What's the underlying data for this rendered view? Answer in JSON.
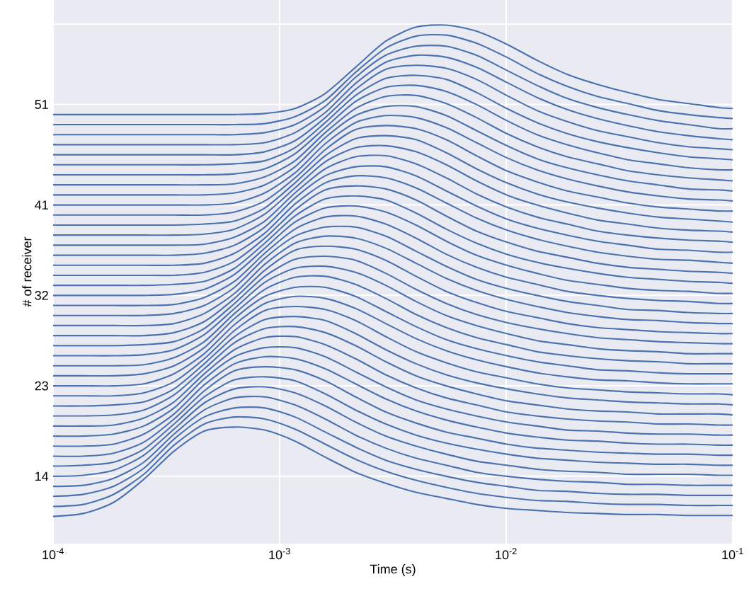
{
  "chart_data": {
    "type": "line",
    "xlabel": "Time (s)",
    "ylabel": "# of receiver",
    "log": "x",
    "grid": true,
    "marker": "none",
    "line_style": "solid",
    "xlim": [
      0.0001,
      0.1
    ],
    "ylim": [
      7.3,
      61.4
    ],
    "xticks": [
      {
        "value": 0.0001,
        "label": "10$^{-4}$"
      },
      {
        "value": 0.001,
        "label": "10$^{-3}$"
      },
      {
        "value": 0.01,
        "label": "10$^{-2}$"
      },
      {
        "value": 0.1,
        "label": "10$^{-1}$"
      }
    ],
    "yticks": [
      14,
      23,
      32,
      41,
      51,
      {
        "value": 59,
        "label": null
      }
    ],
    "x": [
      0.0001,
      0.000136,
      0.0001849,
      0.0002515,
      0.000342,
      0.0004651,
      0.0006324,
      0.0008601,
      0.0011695,
      0.00159,
      0.002163,
      0.002941,
      0.004,
      0.005439,
      0.007396,
      0.010058,
      0.01368,
      0.0186,
      0.02529,
      0.0344,
      0.04677,
      0.0636,
      0.0865,
      0.1
    ],
    "series": [
      {
        "color": "#4c72b0",
        "values": [
          10,
          10.3,
          11.4,
          13.7,
          16.5,
          18.5,
          18.9,
          18.6,
          17.5,
          15.9,
          14.4,
          13.3,
          12.4,
          11.8,
          11.2,
          10.8,
          10.6,
          10.4,
          10.3,
          10.2,
          10.2,
          10.1,
          10.1,
          10.1
        ]
      },
      {
        "color": "#4c72b0",
        "values": [
          11,
          11.2,
          12.2,
          14.2,
          17.1,
          19.2,
          19.9,
          19.7,
          18.7,
          17.2,
          15.7,
          14.5,
          13.6,
          12.9,
          12.3,
          11.9,
          11.6,
          11.5,
          11.3,
          11.2,
          11.2,
          11.1,
          11.1,
          11.1
        ]
      },
      {
        "color": "#4c72b0",
        "values": [
          12,
          12.2,
          13,
          14.8,
          17.7,
          19.9,
          20.8,
          20.8,
          19.9,
          18.4,
          16.9,
          15.6,
          14.7,
          14,
          13.4,
          13,
          12.6,
          12.5,
          12.3,
          12.2,
          12.2,
          12.1,
          12.1,
          12.1
        ]
      },
      {
        "color": "#4c72b0",
        "values": [
          13,
          13.1,
          13.8,
          15.4,
          18.2,
          20.6,
          21.8,
          21.9,
          21.1,
          19.7,
          18.1,
          16.8,
          15.8,
          15.1,
          14.4,
          14,
          13.7,
          13.5,
          13.4,
          13.2,
          13.2,
          13.1,
          13.1,
          13.1
        ]
      },
      {
        "color": "#4c72b0",
        "values": [
          14,
          14.1,
          14.6,
          16.1,
          18.7,
          21.3,
          22.7,
          22.9,
          22.3,
          21,
          19.4,
          18,
          17,
          16.2,
          15.5,
          15.1,
          14.7,
          14.5,
          14.4,
          14.2,
          14.2,
          14.2,
          14.1,
          14.1
        ]
      },
      {
        "color": "#4c72b0",
        "values": [
          15,
          15.1,
          15.4,
          16.7,
          19.2,
          21.9,
          23.6,
          23.9,
          23.5,
          22.2,
          20.6,
          19.2,
          18.1,
          17.3,
          16.7,
          16.2,
          15.8,
          15.6,
          15.4,
          15.3,
          15.2,
          15.2,
          15.1,
          15.1
        ]
      },
      {
        "color": "#4c72b0",
        "values": [
          16,
          16,
          16.3,
          17.4,
          19.7,
          22.5,
          24.5,
          24.9,
          24.6,
          23.5,
          21.9,
          20.4,
          19.3,
          18.4,
          17.8,
          17.2,
          16.8,
          16.6,
          16.4,
          16.3,
          16.2,
          16.2,
          16.1,
          16.1
        ]
      },
      {
        "color": "#4c72b0",
        "values": [
          17,
          17,
          17.2,
          18.2,
          20.2,
          23.1,
          25.2,
          25.9,
          25.7,
          24.7,
          23.2,
          21.7,
          20.5,
          19.6,
          18.9,
          18.3,
          17.9,
          17.6,
          17.5,
          17.3,
          17.2,
          17.2,
          17.1,
          17.1
        ]
      },
      {
        "color": "#4c72b0",
        "values": [
          18,
          18,
          18.2,
          19,
          20.8,
          23.7,
          25.9,
          26.8,
          26.8,
          25.9,
          24.4,
          22.9,
          21.6,
          20.7,
          20,
          19.4,
          19,
          18.6,
          18.5,
          18.3,
          18.2,
          18.2,
          18.1,
          18.1
        ]
      },
      {
        "color": "#4c72b0",
        "values": [
          19,
          19,
          19.1,
          19.8,
          21.4,
          24.2,
          26.6,
          27.8,
          27.9,
          27.1,
          25.7,
          24.1,
          22.8,
          21.8,
          21.1,
          20.4,
          20,
          19.7,
          19.5,
          19.4,
          19.2,
          19.2,
          19.1,
          19.1
        ]
      },
      {
        "color": "#4c72b0",
        "values": [
          20,
          20,
          20.1,
          20.6,
          22.1,
          24.7,
          27.3,
          28.7,
          28.9,
          28.3,
          27,
          25.4,
          24,
          23,
          22.2,
          21.5,
          21.1,
          20.7,
          20.5,
          20.4,
          20.2,
          20.2,
          20.2,
          20.1
        ]
      },
      {
        "color": "#4c72b0",
        "values": [
          21,
          21,
          21.1,
          21.4,
          22.7,
          25.2,
          27.9,
          29.6,
          29.9,
          29.5,
          28.2,
          26.6,
          25.2,
          24.1,
          23.3,
          22.7,
          22.2,
          21.8,
          21.6,
          21.4,
          21.3,
          21.2,
          21.2,
          21.1
        ]
      },
      {
        "color": "#4c72b0",
        "values": [
          22,
          22,
          22,
          22.3,
          23.4,
          25.7,
          28.5,
          30.5,
          30.9,
          30.6,
          29.5,
          27.9,
          26.4,
          25.3,
          24.4,
          23.8,
          23.2,
          22.8,
          22.6,
          22.4,
          22.3,
          22.2,
          22.2,
          22.1
        ]
      },
      {
        "color": "#4c72b0",
        "values": [
          23,
          23,
          23,
          23.2,
          24.2,
          26.2,
          29.1,
          31.2,
          31.9,
          31.7,
          30.7,
          29.2,
          27.7,
          26.5,
          25.6,
          24.9,
          24.3,
          23.9,
          23.6,
          23.5,
          23.3,
          23.2,
          23.2,
          23.2
        ]
      },
      {
        "color": "#4c72b0",
        "values": [
          24,
          24,
          24,
          24.2,
          25,
          26.8,
          29.7,
          31.9,
          32.8,
          32.8,
          31.9,
          30.4,
          28.9,
          27.6,
          26.7,
          26,
          25.4,
          25,
          24.6,
          24.5,
          24.3,
          24.2,
          24.2,
          24.2
        ]
      },
      {
        "color": "#4c72b0",
        "values": [
          25,
          25,
          25,
          25.1,
          25.8,
          27.4,
          30.2,
          32.6,
          33.8,
          33.9,
          33.1,
          31.7,
          30.1,
          28.8,
          27.8,
          27.1,
          26.4,
          26,
          25.7,
          25.5,
          25.4,
          25.2,
          25.2,
          25.2
        ]
      },
      {
        "color": "#4c72b0",
        "values": [
          26,
          26,
          26,
          26.1,
          26.6,
          28.1,
          30.7,
          33.3,
          34.7,
          34.9,
          34.3,
          33,
          31.4,
          30,
          29,
          28.2,
          27.5,
          27.1,
          26.7,
          26.5,
          26.4,
          26.2,
          26.2,
          26.2
        ]
      },
      {
        "color": "#4c72b0",
        "values": [
          27,
          27,
          27,
          27.1,
          27.4,
          28.7,
          31.2,
          33.9,
          35.6,
          35.9,
          35.5,
          34.2,
          32.6,
          31.2,
          30.1,
          29.3,
          28.7,
          28.2,
          27.8,
          27.6,
          27.4,
          27.3,
          27.2,
          27.2
        ]
      },
      {
        "color": "#4c72b0",
        "values": [
          28,
          28,
          28,
          28,
          28.3,
          29.4,
          31.7,
          34.5,
          36.5,
          36.9,
          36.6,
          35.5,
          33.9,
          32.4,
          31.3,
          30.4,
          29.8,
          29.2,
          28.8,
          28.6,
          28.4,
          28.3,
          28.2,
          28.2
        ]
      },
      {
        "color": "#4c72b0",
        "values": [
          29,
          29,
          29,
          29,
          29.2,
          30.2,
          32.2,
          35.1,
          37.2,
          37.9,
          37.7,
          36.7,
          35.2,
          33.7,
          32.5,
          31.6,
          30.9,
          30.3,
          29.9,
          29.6,
          29.5,
          29.3,
          29.2,
          29.2
        ]
      },
      {
        "color": "#4c72b0",
        "values": [
          30,
          30,
          30,
          30,
          30.2,
          31,
          32.8,
          35.7,
          37.9,
          38.8,
          38.8,
          37.9,
          36.4,
          34.9,
          33.6,
          32.7,
          32,
          31.4,
          31,
          30.6,
          30.5,
          30.3,
          30.2,
          30.2
        ]
      },
      {
        "color": "#4c72b0",
        "values": [
          31,
          31,
          31,
          31,
          31.1,
          31.8,
          33.4,
          36.2,
          38.6,
          39.8,
          39.9,
          39.1,
          37.7,
          36.1,
          34.8,
          33.8,
          33.1,
          32.4,
          32,
          31.7,
          31.5,
          31.4,
          31.2,
          31.2
        ]
      },
      {
        "color": "#4c72b0",
        "values": [
          32,
          32,
          32,
          32,
          32.1,
          32.6,
          34.1,
          36.7,
          39.3,
          40.7,
          40.9,
          40.3,
          39,
          37.4,
          36,
          35,
          34.2,
          33.5,
          33.1,
          32.7,
          32.5,
          32.4,
          32.2,
          32.2
        ]
      },
      {
        "color": "#4c72b0",
        "values": [
          33,
          33,
          33,
          33,
          33.1,
          33.4,
          34.7,
          37.2,
          39.9,
          41.6,
          41.9,
          41.5,
          40.2,
          38.6,
          37.2,
          36.1,
          35.3,
          34.7,
          34.2,
          33.8,
          33.6,
          33.4,
          33.3,
          33.2
        ]
      },
      {
        "color": "#4c72b0",
        "values": [
          34,
          34,
          34,
          34,
          34,
          34.3,
          35.4,
          37.7,
          40.5,
          42.5,
          42.9,
          42.6,
          41.5,
          39.9,
          38.4,
          37.3,
          36.4,
          35.8,
          35.2,
          34.8,
          34.6,
          34.4,
          34.3,
          34.2
        ]
      },
      {
        "color": "#4c72b0",
        "values": [
          35,
          35,
          35,
          35,
          35,
          35.2,
          36.2,
          38.2,
          41.1,
          43.2,
          43.9,
          43.7,
          42.7,
          41.2,
          39.7,
          38.5,
          37.6,
          36.9,
          36.3,
          35.9,
          35.6,
          35.5,
          35.3,
          35.2
        ]
      },
      {
        "color": "#4c72b0",
        "values": [
          36,
          36,
          36,
          36,
          36,
          36.2,
          37,
          38.8,
          41.7,
          43.9,
          44.8,
          44.8,
          43.9,
          42.4,
          40.9,
          39.6,
          38.7,
          38,
          37.4,
          37,
          36.6,
          36.5,
          36.3,
          36.3
        ]
      },
      {
        "color": "#4c72b0",
        "values": [
          37,
          37,
          37,
          37,
          37,
          37.1,
          37.8,
          39.4,
          42.2,
          44.6,
          45.8,
          45.9,
          45.1,
          43.7,
          42.1,
          40.8,
          39.8,
          39.1,
          38.4,
          38,
          37.7,
          37.5,
          37.4,
          37.3
        ]
      },
      {
        "color": "#4c72b0",
        "values": [
          38,
          38,
          38,
          38,
          38,
          38.1,
          38.6,
          40.1,
          42.7,
          45.3,
          46.7,
          46.9,
          46.3,
          45,
          43.4,
          42,
          41,
          40.2,
          39.5,
          39.1,
          38.7,
          38.5,
          38.4,
          38.3
        ]
      },
      {
        "color": "#4c72b0",
        "values": [
          39,
          39,
          39,
          39,
          39,
          39.1,
          39.4,
          40.7,
          43.2,
          45.9,
          47.6,
          47.9,
          47.5,
          46.2,
          44.6,
          43.2,
          42.1,
          41.3,
          40.7,
          40.2,
          39.8,
          39.6,
          39.4,
          39.3
        ]
      },
      {
        "color": "#4c72b0",
        "values": [
          40,
          40,
          40,
          40,
          40,
          40,
          40.3,
          41.4,
          43.7,
          46.5,
          48.5,
          48.9,
          48.6,
          47.5,
          45.9,
          44.4,
          43.3,
          42.4,
          41.8,
          41.2,
          40.8,
          40.6,
          40.4,
          40.4
        ]
      },
      {
        "color": "#4c72b0",
        "values": [
          41,
          41,
          41,
          41,
          41,
          41,
          41.2,
          42.2,
          44.2,
          47.1,
          49.2,
          49.9,
          49.7,
          48.7,
          47.2,
          45.7,
          44.5,
          43.6,
          42.9,
          42.3,
          41.9,
          41.6,
          41.5,
          41.4
        ]
      },
      {
        "color": "#4c72b0",
        "values": [
          42,
          42,
          42,
          42,
          42,
          42,
          42.2,
          43,
          44.8,
          47.7,
          49.9,
          50.8,
          50.8,
          49.9,
          48.4,
          46.9,
          45.6,
          44.7,
          44,
          43.4,
          43,
          42.6,
          42.5,
          42.4
        ]
      },
      {
        "color": "#4c72b0",
        "values": [
          43,
          43,
          43,
          43,
          43,
          43,
          43.1,
          43.8,
          45.4,
          48.2,
          50.6,
          51.8,
          51.9,
          51.1,
          49.7,
          48.1,
          46.8,
          45.8,
          45.1,
          44.4,
          44,
          43.7,
          43.5,
          43.4
        ]
      },
      {
        "color": "#4c72b0",
        "values": [
          44,
          44,
          44,
          44,
          44,
          44,
          44.1,
          44.6,
          46.1,
          48.7,
          51.3,
          52.7,
          52.9,
          52.3,
          51,
          49.4,
          48,
          47,
          46.2,
          45.5,
          45.1,
          44.7,
          44.5,
          44.5
        ]
      },
      {
        "color": "#4c72b0",
        "values": [
          45,
          45,
          45,
          45,
          45,
          45,
          45.1,
          45.4,
          46.7,
          49.2,
          51.9,
          53.6,
          53.9,
          53.5,
          52.2,
          50.6,
          49.2,
          48.1,
          47.3,
          46.7,
          46.2,
          45.8,
          45.6,
          45.5
        ]
      },
      {
        "color": "#4c72b0",
        "values": [
          46,
          46,
          46,
          46,
          46,
          46,
          46,
          46.3,
          47.4,
          49.7,
          52.5,
          54.5,
          54.9,
          54.6,
          53.5,
          51.9,
          50.4,
          49.3,
          48.4,
          47.8,
          47.2,
          46.8,
          46.6,
          46.5
        ]
      },
      {
        "color": "#4c72b0",
        "values": [
          47,
          47,
          47,
          47,
          47,
          47,
          47,
          47.2,
          48.2,
          50.2,
          53.1,
          55.2,
          55.9,
          55.7,
          54.7,
          53.2,
          51.7,
          50.5,
          49.6,
          48.9,
          48.3,
          47.9,
          47.6,
          47.5
        ]
      },
      {
        "color": "#4c72b0",
        "values": [
          48,
          48,
          48,
          48,
          48,
          48,
          48,
          48.2,
          49,
          50.8,
          53.7,
          55.9,
          56.8,
          56.8,
          55.9,
          54.4,
          52.9,
          51.6,
          50.7,
          50,
          49.4,
          49,
          48.6,
          48.6
        ]
      },
      {
        "color": "#4c72b0",
        "values": [
          49,
          49,
          49,
          49,
          49,
          49,
          49,
          49.1,
          49.8,
          51.4,
          54.2,
          56.6,
          57.8,
          57.9,
          57.1,
          55.7,
          54.1,
          52.8,
          51.8,
          51.1,
          50.4,
          50,
          49.7,
          49.6
        ]
      },
      {
        "color": "#4c72b0",
        "values": [
          50,
          50,
          50,
          50,
          50,
          50,
          50,
          50.1,
          50.6,
          52.1,
          54.7,
          57.3,
          58.7,
          58.9,
          58.3,
          57,
          55.4,
          54,
          53,
          52.2,
          51.5,
          51.1,
          50.7,
          50.6
        ]
      }
    ]
  }
}
